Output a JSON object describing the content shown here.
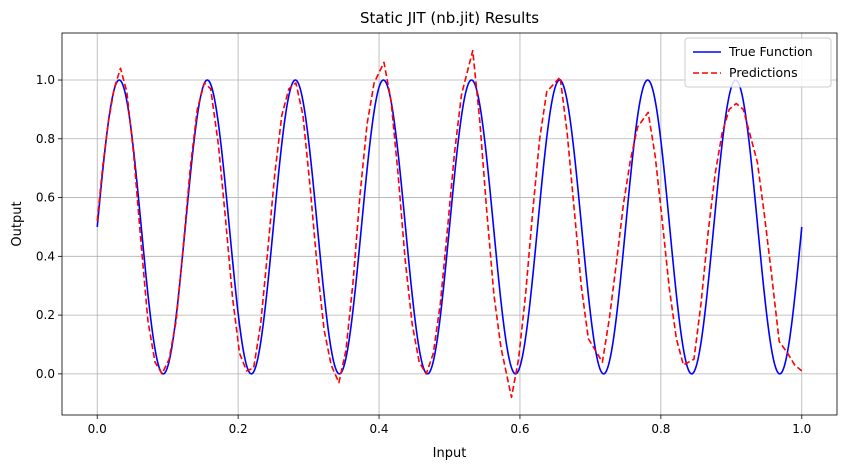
{
  "chart_data": {
    "type": "line",
    "title": "Static JIT (nb.jit) Results",
    "xlabel": "Input",
    "ylabel": "Output",
    "xlim": [
      -0.05,
      1.05
    ],
    "ylim": [
      -0.14,
      1.16
    ],
    "xticks": [
      0.0,
      0.2,
      0.4,
      0.6,
      0.8,
      1.0
    ],
    "xtick_labels": [
      "0.0",
      "0.2",
      "0.4",
      "0.6",
      "0.8",
      "1.0"
    ],
    "yticks": [
      0.0,
      0.2,
      0.4,
      0.6,
      0.8,
      1.0
    ],
    "ytick_labels": [
      "0.0",
      "0.2",
      "0.4",
      "0.6",
      "0.8",
      "1.0"
    ],
    "grid": true,
    "legend_position": "top-right",
    "series": [
      {
        "name": "True Function",
        "style": "solid",
        "color": "#0000ff",
        "function": "0.5 + 0.5*sin(16*pi*x)",
        "x_range": [
          0,
          1
        ]
      },
      {
        "name": "Predictions",
        "style": "dashed",
        "color": "#ff0000",
        "x": [
          0.0,
          0.008,
          0.016,
          0.024,
          0.033,
          0.042,
          0.052,
          0.062,
          0.072,
          0.082,
          0.092,
          0.102,
          0.112,
          0.122,
          0.132,
          0.142,
          0.152,
          0.161,
          0.172,
          0.182,
          0.192,
          0.202,
          0.212,
          0.222,
          0.232,
          0.242,
          0.252,
          0.262,
          0.272,
          0.282,
          0.292,
          0.302,
          0.312,
          0.322,
          0.332,
          0.343,
          0.353,
          0.363,
          0.373,
          0.383,
          0.393,
          0.407,
          0.417,
          0.427,
          0.437,
          0.447,
          0.457,
          0.467,
          0.477,
          0.487,
          0.497,
          0.507,
          0.517,
          0.533,
          0.543,
          0.553,
          0.563,
          0.573,
          0.588,
          0.598,
          0.608,
          0.618,
          0.628,
          0.638,
          0.657,
          0.667,
          0.677,
          0.687,
          0.697,
          0.717,
          0.727,
          0.737,
          0.747,
          0.757,
          0.767,
          0.782,
          0.792,
          0.802,
          0.812,
          0.822,
          0.832,
          0.847,
          0.857,
          0.867,
          0.877,
          0.887,
          0.897,
          0.907,
          0.917,
          0.937,
          0.947,
          0.957,
          0.968,
          0.98,
          0.99,
          1.0
        ],
        "y": [
          0.52,
          0.71,
          0.86,
          0.97,
          1.04,
          0.96,
          0.74,
          0.45,
          0.18,
          0.04,
          0.0,
          0.05,
          0.18,
          0.43,
          0.7,
          0.9,
          0.99,
          0.97,
          0.78,
          0.53,
          0.26,
          0.07,
          0.01,
          0.02,
          0.17,
          0.42,
          0.68,
          0.88,
          0.97,
          0.99,
          0.88,
          0.64,
          0.37,
          0.15,
          0.03,
          -0.03,
          0.08,
          0.31,
          0.61,
          0.85,
          0.99,
          1.06,
          0.93,
          0.68,
          0.39,
          0.17,
          0.04,
          0.0,
          0.07,
          0.24,
          0.49,
          0.75,
          0.95,
          1.1,
          0.86,
          0.55,
          0.27,
          0.09,
          -0.08,
          0.05,
          0.27,
          0.55,
          0.8,
          0.96,
          1.01,
          0.82,
          0.56,
          0.3,
          0.12,
          0.04,
          0.19,
          0.38,
          0.58,
          0.73,
          0.84,
          0.89,
          0.74,
          0.52,
          0.29,
          0.12,
          0.03,
          0.05,
          0.24,
          0.48,
          0.68,
          0.82,
          0.9,
          0.92,
          0.9,
          0.72,
          0.54,
          0.34,
          0.11,
          0.07,
          0.03,
          0.01
        ]
      }
    ]
  }
}
